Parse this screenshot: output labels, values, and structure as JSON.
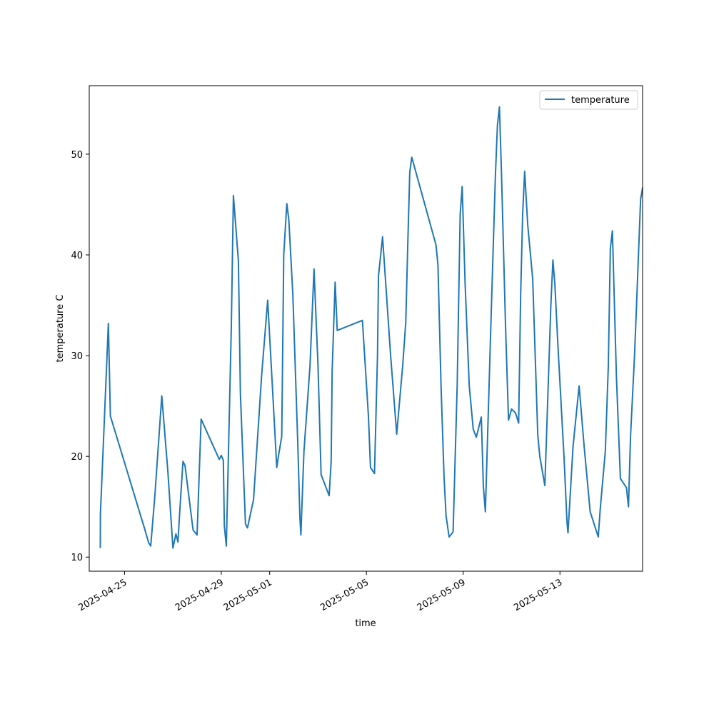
{
  "chart_data": {
    "type": "line",
    "xlabel": "time",
    "ylabel": "temperature C",
    "x_ticks": [
      "2025-04-25",
      "2025-04-29",
      "2025-05-01",
      "2025-05-05",
      "2025-05-09",
      "2025-05-13"
    ],
    "y_ticks": [
      10,
      20,
      30,
      40,
      50
    ],
    "xlim": [
      "2025-04-23T13:00",
      "2025-05-16T10:00"
    ],
    "ylim": [
      8.6,
      56.8
    ],
    "grid": false,
    "legend_position": "top-right",
    "series": [
      {
        "name": "temperature",
        "color": "#1f77b4",
        "points": [
          [
            "2025-04-24T00:00",
            10.9
          ],
          [
            "2025-04-24T00:05",
            14.2
          ],
          [
            "2025-04-24T08:00",
            33.2
          ],
          [
            "2025-04-24T10:00",
            24.0
          ],
          [
            "2025-04-25T20:00",
            12.8
          ],
          [
            "2025-04-26T00:00",
            11.4
          ],
          [
            "2025-04-26T02:00",
            11.1
          ],
          [
            "2025-04-26T06:00",
            16.0
          ],
          [
            "2025-04-26T13:00",
            26.0
          ],
          [
            "2025-04-26T19:00",
            18.5
          ],
          [
            "2025-04-27T00:00",
            10.9
          ],
          [
            "2025-04-27T03:00",
            12.3
          ],
          [
            "2025-04-27T05:00",
            11.5
          ],
          [
            "2025-04-27T07:00",
            14.8
          ],
          [
            "2025-04-27T10:00",
            19.5
          ],
          [
            "2025-04-27T12:00",
            19.1
          ],
          [
            "2025-04-27T20:00",
            12.7
          ],
          [
            "2025-04-28T00:00",
            12.2
          ],
          [
            "2025-04-28T04:00",
            23.7
          ],
          [
            "2025-04-28T22:00",
            19.7
          ],
          [
            "2025-04-29T00:00",
            20.1
          ],
          [
            "2025-04-29T02:00",
            19.6
          ],
          [
            "2025-04-29T03:00",
            13.1
          ],
          [
            "2025-04-29T05:00",
            11.1
          ],
          [
            "2025-04-29T10:00",
            33.0
          ],
          [
            "2025-04-29T12:00",
            45.9
          ],
          [
            "2025-04-29T17:00",
            39.4
          ],
          [
            "2025-04-29T19:00",
            26.2
          ],
          [
            "2025-04-30T00:00",
            13.3
          ],
          [
            "2025-04-30T02:00",
            12.9
          ],
          [
            "2025-04-30T08:00",
            15.7
          ],
          [
            "2025-04-30T16:00",
            28.0
          ],
          [
            "2025-04-30T22:00",
            35.5
          ],
          [
            "2025-05-01T04:00",
            24.6
          ],
          [
            "2025-05-01T07:00",
            18.9
          ],
          [
            "2025-05-01T09:00",
            20.2
          ],
          [
            "2025-05-01T12:00",
            22.0
          ],
          [
            "2025-05-01T14:00",
            40.0
          ],
          [
            "2025-05-01T17:00",
            45.1
          ],
          [
            "2025-05-01T19:00",
            43.5
          ],
          [
            "2025-05-01T23:00",
            36.0
          ],
          [
            "2025-05-02T04:00",
            21.0
          ],
          [
            "2025-05-02T06:00",
            14.0
          ],
          [
            "2025-05-02T07:00",
            12.2
          ],
          [
            "2025-05-02T10:00",
            20.5
          ],
          [
            "2025-05-02T16:00",
            29.0
          ],
          [
            "2025-05-02T20:00",
            38.6
          ],
          [
            "2025-05-03T00:00",
            29.0
          ],
          [
            "2025-05-03T03:00",
            18.2
          ],
          [
            "2025-05-03T11:00",
            16.1
          ],
          [
            "2025-05-03T13:00",
            19.5
          ],
          [
            "2025-05-03T14:00",
            28.5
          ],
          [
            "2025-05-03T17:00",
            37.3
          ],
          [
            "2025-05-03T19:00",
            32.5
          ],
          [
            "2025-05-04T20:00",
            33.5
          ],
          [
            "2025-05-05T02:00",
            24.0
          ],
          [
            "2025-05-05T04:00",
            18.9
          ],
          [
            "2025-05-05T08:00",
            18.3
          ],
          [
            "2025-05-05T11:00",
            30.0
          ],
          [
            "2025-05-05T12:00",
            37.9
          ],
          [
            "2025-05-05T16:00",
            41.8
          ],
          [
            "2025-05-06T00:00",
            30.0
          ],
          [
            "2025-05-06T06:00",
            22.2
          ],
          [
            "2025-05-06T12:00",
            29.0
          ],
          [
            "2025-05-06T15:00",
            33.3
          ],
          [
            "2025-05-06T17:00",
            41.0
          ],
          [
            "2025-05-06T19:00",
            48.2
          ],
          [
            "2025-05-06T21:00",
            49.7
          ],
          [
            "2025-05-07T21:00",
            41.0
          ],
          [
            "2025-05-07T23:00",
            39.0
          ],
          [
            "2025-05-08T02:00",
            27.0
          ],
          [
            "2025-05-08T05:00",
            18.0
          ],
          [
            "2025-05-08T07:00",
            14.1
          ],
          [
            "2025-05-08T10:00",
            12.0
          ],
          [
            "2025-05-08T14:00",
            12.5
          ],
          [
            "2025-05-08T18:00",
            27.0
          ],
          [
            "2025-05-08T21:00",
            44.0
          ],
          [
            "2025-05-08T23:00",
            46.8
          ],
          [
            "2025-05-09T02:00",
            37.0
          ],
          [
            "2025-05-09T06:00",
            27.0
          ],
          [
            "2025-05-09T10:00",
            22.7
          ],
          [
            "2025-05-09T13:00",
            21.9
          ],
          [
            "2025-05-09T18:00",
            23.9
          ],
          [
            "2025-05-09T20:00",
            17.0
          ],
          [
            "2025-05-09T22:00",
            14.5
          ],
          [
            "2025-05-10T04:00",
            35.0
          ],
          [
            "2025-05-10T08:00",
            48.0
          ],
          [
            "2025-05-10T10:00",
            52.9
          ],
          [
            "2025-05-10T12:00",
            54.7
          ],
          [
            "2025-05-10T14:00",
            48.0
          ],
          [
            "2025-05-10T18:00",
            33.0
          ],
          [
            "2025-05-10T21:00",
            23.6
          ],
          [
            "2025-05-11T00:00",
            24.7
          ],
          [
            "2025-05-11T04:00",
            24.3
          ],
          [
            "2025-05-11T07:00",
            23.3
          ],
          [
            "2025-05-11T09:00",
            36.0
          ],
          [
            "2025-05-11T11:00",
            44.0
          ],
          [
            "2025-05-11T13:00",
            48.3
          ],
          [
            "2025-05-11T16:00",
            43.0
          ],
          [
            "2025-05-11T21:00",
            37.6
          ],
          [
            "2025-05-12T02:00",
            22.1
          ],
          [
            "2025-05-12T04:00",
            20.0
          ],
          [
            "2025-05-12T09:00",
            17.1
          ],
          [
            "2025-05-12T11:00",
            23.0
          ],
          [
            "2025-05-12T15:00",
            35.0
          ],
          [
            "2025-05-12T17:00",
            39.5
          ],
          [
            "2025-05-12T19:00",
            37.0
          ],
          [
            "2025-05-12T22:00",
            31.0
          ],
          [
            "2025-05-13T04:00",
            20.0
          ],
          [
            "2025-05-13T07:00",
            13.5
          ],
          [
            "2025-05-13T08:00",
            12.4
          ],
          [
            "2025-05-13T13:00",
            21.0
          ],
          [
            "2025-05-13T19:00",
            27.0
          ],
          [
            "2025-05-14T00:00",
            21.0
          ],
          [
            "2025-05-14T06:00",
            14.5
          ],
          [
            "2025-05-14T14:00",
            12.0
          ],
          [
            "2025-05-14T16:00",
            14.8
          ],
          [
            "2025-05-14T21:00",
            20.5
          ],
          [
            "2025-05-15T00:00",
            29.0
          ],
          [
            "2025-05-15T02:00",
            40.6
          ],
          [
            "2025-05-15T04:00",
            42.4
          ],
          [
            "2025-05-15T08:00",
            28.0
          ],
          [
            "2025-05-15T12:00",
            17.8
          ],
          [
            "2025-05-15T18:00",
            16.9
          ],
          [
            "2025-05-15T20:00",
            15.0
          ],
          [
            "2025-05-15T22:00",
            22.0
          ],
          [
            "2025-05-16T02:00",
            30.0
          ],
          [
            "2025-05-16T04:00",
            35.0
          ],
          [
            "2025-05-16T08:00",
            45.5
          ],
          [
            "2025-05-16T10:00",
            46.7
          ]
        ]
      }
    ]
  }
}
